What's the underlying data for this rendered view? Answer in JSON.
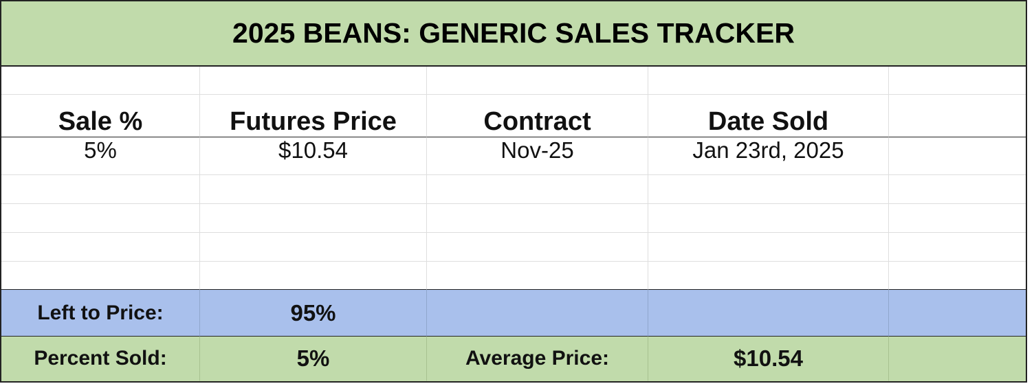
{
  "title": "2025 BEANS: GENERIC SALES TRACKER",
  "table": {
    "headers": [
      "Sale %",
      "Futures Price",
      "Contract",
      "Date Sold"
    ],
    "rows": [
      [
        "5%",
        "$10.54",
        "Nov-25",
        "Jan 23rd, 2025"
      ]
    ]
  },
  "summary": {
    "left_to_price": {
      "label": "Left to Price:",
      "value": "95%"
    },
    "percent_sold": {
      "label": "Percent Sold:",
      "value": "5%"
    },
    "average_price": {
      "label": "Average Price:",
      "value": "$10.54"
    }
  }
}
